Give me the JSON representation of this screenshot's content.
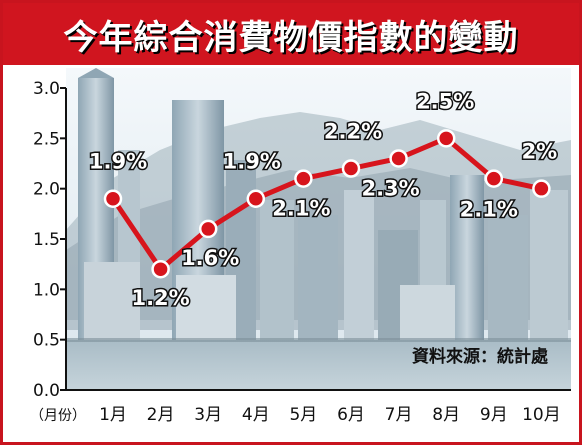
{
  "title": "今年綜合消費物價指數的變動",
  "source_note": "資料來源：統計處",
  "x_unit_label": "（月份）",
  "colors": {
    "frame": "#c8141e",
    "title_bg": "#d0151f",
    "line": "#d7141c",
    "marker_fill": "#d7141c",
    "marker_ring": "#ffffff"
  },
  "chart_data": {
    "type": "line",
    "title": "今年綜合消費物價指數的變動",
    "categories": [
      "1月",
      "2月",
      "3月",
      "4月",
      "5月",
      "6月",
      "7月",
      "8月",
      "9月",
      "10月"
    ],
    "values": [
      1.9,
      1.2,
      1.6,
      1.9,
      2.1,
      2.2,
      2.3,
      2.5,
      2.1,
      2.0
    ],
    "data_labels": [
      "1.9%",
      "1.2%",
      "1.6%",
      "1.9%",
      "2.1%",
      "2.2%",
      "2.3%",
      "2.5%",
      "2.1%",
      "2%"
    ],
    "ylim": [
      0,
      3.0
    ],
    "yticks": [
      0.0,
      0.5,
      1.0,
      1.5,
      2.0,
      2.5,
      3.0
    ],
    "ytick_labels": [
      "0.0",
      "0.5",
      "1.0",
      "1.5",
      "2.0",
      "2.5",
      "3.0"
    ],
    "grid": false,
    "background": "photo-of-city-skyline"
  }
}
